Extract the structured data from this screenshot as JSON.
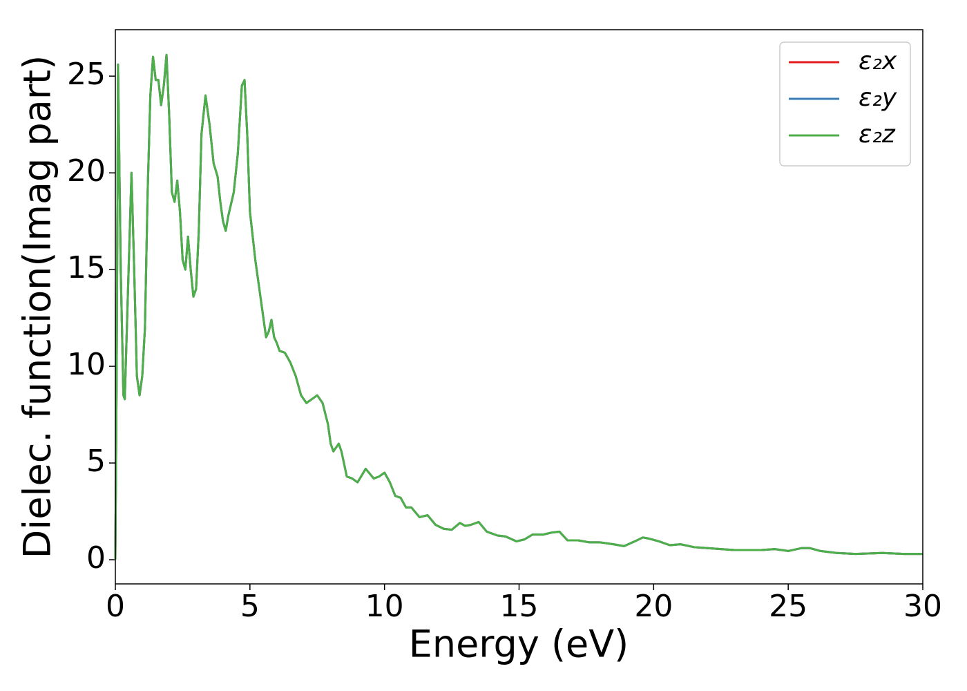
{
  "chart_data": {
    "type": "line",
    "xlabel": "Energy (eV)",
    "ylabel": "Dielec. function(Imag part)",
    "x": [
      0,
      0.05,
      0.1,
      0.2,
      0.3,
      0.35,
      0.45,
      0.6,
      0.7,
      0.8,
      0.9,
      1.0,
      1.1,
      1.2,
      1.3,
      1.4,
      1.5,
      1.6,
      1.7,
      1.8,
      1.9,
      2.0,
      2.1,
      2.2,
      2.3,
      2.4,
      2.5,
      2.6,
      2.7,
      2.8,
      2.9,
      3.0,
      3.1,
      3.2,
      3.35,
      3.5,
      3.65,
      3.8,
      3.9,
      4.0,
      4.1,
      4.2,
      4.4,
      4.55,
      4.7,
      4.8,
      4.9,
      5.0,
      5.2,
      5.4,
      5.5,
      5.6,
      5.7,
      5.8,
      5.9,
      6.0,
      6.1,
      6.3,
      6.5,
      6.7,
      6.9,
      7.1,
      7.3,
      7.5,
      7.7,
      7.9,
      8.0,
      8.1,
      8.3,
      8.4,
      8.6,
      8.8,
      9.0,
      9.3,
      9.6,
      9.8,
      10.0,
      10.2,
      10.4,
      10.6,
      10.8,
      11.0,
      11.3,
      11.6,
      11.9,
      12.2,
      12.5,
      12.8,
      13.0,
      13.2,
      13.5,
      13.8,
      14.2,
      14.5,
      14.9,
      15.2,
      15.5,
      15.9,
      16.2,
      16.5,
      16.8,
      17.2,
      17.6,
      18.0,
      18.5,
      18.9,
      19.3,
      19.6,
      19.8,
      20.2,
      20.6,
      21.0,
      21.5,
      22.0,
      23.0,
      24.0,
      24.5,
      25.0,
      25.5,
      25.8,
      26.2,
      26.8,
      27.5,
      28.5,
      29.3,
      30.0
    ],
    "series": [
      {
        "name": "ε₂x",
        "color": "#e41a1c",
        "values": [
          0,
          10,
          25.6,
          15,
          8.5,
          8.3,
          13,
          20,
          15,
          9.5,
          8.5,
          9.5,
          12,
          19,
          24,
          26,
          24.8,
          24.8,
          23.5,
          24.5,
          26.1,
          23,
          19,
          18.5,
          19.6,
          18,
          15.5,
          15,
          16.7,
          15,
          13.6,
          14,
          17,
          22,
          24,
          22.5,
          20.5,
          19.8,
          18.5,
          17.5,
          17,
          17.8,
          19,
          21,
          24.5,
          24.8,
          22,
          18,
          15.5,
          13.5,
          12.5,
          11.5,
          11.8,
          12.4,
          11.5,
          11.2,
          10.8,
          10.7,
          10.2,
          9.5,
          8.5,
          8.1,
          8.3,
          8.5,
          8.1,
          7,
          6,
          5.6,
          6,
          5.6,
          4.3,
          4.2,
          4.0,
          4.7,
          4.2,
          4.3,
          4.5,
          4.0,
          3.3,
          3.2,
          2.7,
          2.7,
          2.2,
          2.3,
          1.8,
          1.6,
          1.55,
          1.9,
          1.75,
          1.8,
          1.95,
          1.45,
          1.25,
          1.2,
          0.95,
          1.05,
          1.3,
          1.3,
          1.4,
          1.45,
          1.0,
          1.0,
          0.9,
          0.9,
          0.8,
          0.7,
          0.95,
          1.15,
          1.1,
          0.95,
          0.75,
          0.8,
          0.65,
          0.6,
          0.5,
          0.5,
          0.55,
          0.45,
          0.6,
          0.6,
          0.45,
          0.35,
          0.3,
          0.35,
          0.3,
          0.3
        ]
      },
      {
        "name": "ε₂y",
        "color": "#377eb8",
        "values": [
          0,
          10,
          25.6,
          15,
          8.5,
          8.3,
          13,
          20,
          15,
          9.5,
          8.5,
          9.5,
          12,
          19,
          24,
          26,
          24.8,
          24.8,
          23.5,
          24.5,
          26.1,
          23,
          19,
          18.5,
          19.6,
          18,
          15.5,
          15,
          16.7,
          15,
          13.6,
          14,
          17,
          22,
          24,
          22.5,
          20.5,
          19.8,
          18.5,
          17.5,
          17,
          17.8,
          19,
          21,
          24.5,
          24.8,
          22,
          18,
          15.5,
          13.5,
          12.5,
          11.5,
          11.8,
          12.4,
          11.5,
          11.2,
          10.8,
          10.7,
          10.2,
          9.5,
          8.5,
          8.1,
          8.3,
          8.5,
          8.1,
          7,
          6,
          5.6,
          6,
          5.6,
          4.3,
          4.2,
          4.0,
          4.7,
          4.2,
          4.3,
          4.5,
          4.0,
          3.3,
          3.2,
          2.7,
          2.7,
          2.2,
          2.3,
          1.8,
          1.6,
          1.55,
          1.9,
          1.75,
          1.8,
          1.95,
          1.45,
          1.25,
          1.2,
          0.95,
          1.05,
          1.3,
          1.3,
          1.4,
          1.45,
          1.0,
          1.0,
          0.9,
          0.9,
          0.8,
          0.7,
          0.95,
          1.15,
          1.1,
          0.95,
          0.75,
          0.8,
          0.65,
          0.6,
          0.5,
          0.5,
          0.55,
          0.45,
          0.6,
          0.6,
          0.45,
          0.35,
          0.3,
          0.35,
          0.3,
          0.3
        ]
      },
      {
        "name": "ε₂z",
        "color": "#4daf4a",
        "values": [
          0,
          10,
          25.6,
          15,
          8.5,
          8.3,
          13,
          20,
          15,
          9.5,
          8.5,
          9.5,
          12,
          19,
          24,
          26,
          24.8,
          24.8,
          23.5,
          24.5,
          26.1,
          23,
          19,
          18.5,
          19.6,
          18,
          15.5,
          15,
          16.7,
          15,
          13.6,
          14,
          17,
          22,
          24,
          22.5,
          20.5,
          19.8,
          18.5,
          17.5,
          17,
          17.8,
          19,
          21,
          24.5,
          24.8,
          22,
          18,
          15.5,
          13.5,
          12.5,
          11.5,
          11.8,
          12.4,
          11.5,
          11.2,
          10.8,
          10.7,
          10.2,
          9.5,
          8.5,
          8.1,
          8.3,
          8.5,
          8.1,
          7,
          6,
          5.6,
          6,
          5.6,
          4.3,
          4.2,
          4.0,
          4.7,
          4.2,
          4.3,
          4.5,
          4.0,
          3.3,
          3.2,
          2.7,
          2.7,
          2.2,
          2.3,
          1.8,
          1.6,
          1.55,
          1.9,
          1.75,
          1.8,
          1.95,
          1.45,
          1.25,
          1.2,
          0.95,
          1.05,
          1.3,
          1.3,
          1.4,
          1.45,
          1.0,
          1.0,
          0.9,
          0.9,
          0.8,
          0.7,
          0.95,
          1.15,
          1.1,
          0.95,
          0.75,
          0.8,
          0.65,
          0.6,
          0.5,
          0.5,
          0.55,
          0.45,
          0.6,
          0.6,
          0.45,
          0.35,
          0.3,
          0.35,
          0.3,
          0.3
        ]
      }
    ],
    "xlim": [
      0,
      30
    ],
    "xticks": [
      0,
      5,
      10,
      15,
      20,
      25,
      30
    ],
    "ylim": [
      -1.25,
      27.4
    ],
    "yticks": [
      0,
      5,
      10,
      15,
      20,
      25
    ],
    "legend": "upper right"
  }
}
